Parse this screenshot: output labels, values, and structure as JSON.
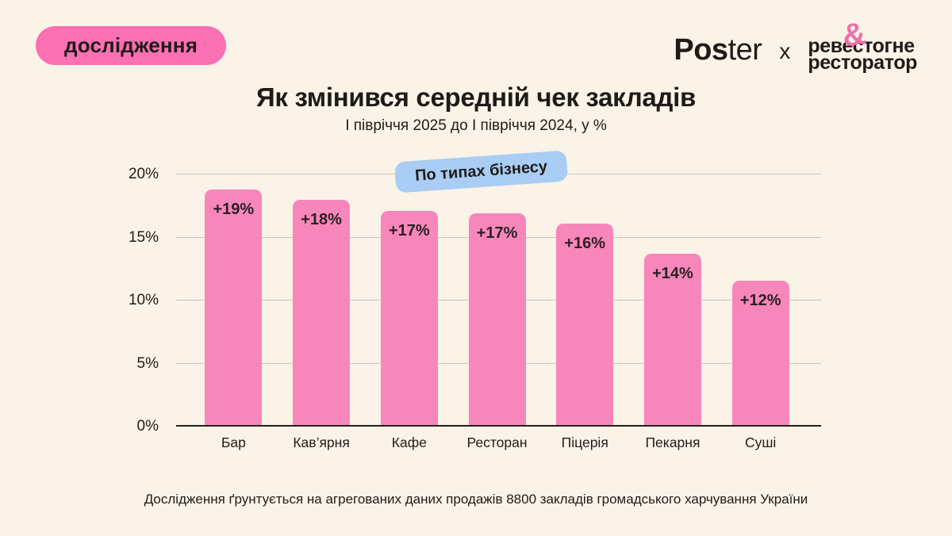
{
  "colors": {
    "background": "#FBF3E8",
    "badge_pink": "#FA70B2",
    "bar_pink": "#F787BA",
    "tag_blue": "#A9CDF4",
    "logo_pink": "#F06EAC",
    "text_dark": "#1E1B18",
    "gridline_gray": "#CBC5BC",
    "axis_black": "#23201C"
  },
  "header": {
    "badge_label": "дослідження",
    "poster_logo": {
      "bold_part": "Pos",
      "light_part": "ter"
    },
    "collab_separator": "x",
    "partner_logo": {
      "ampersand": "&",
      "line1": "ревестогне",
      "line2": "ресторатор"
    }
  },
  "title": "Як змінився середній чек закладів",
  "subtitle": "І півріччя 2025 до І півріччя 2024, у %",
  "chart_data": {
    "type": "bar",
    "tag_label": "По типах бізнесу",
    "categories": [
      "Бар",
      "Кав’ярня",
      "Кафе",
      "Ресторан",
      "Піцерія",
      "Пекарня",
      "Суші"
    ],
    "values": [
      19,
      18,
      17,
      17,
      16,
      14,
      12
    ],
    "value_labels": [
      "+19%",
      "+18%",
      "+17%",
      "+17%",
      "+16%",
      "+14%",
      "+12%"
    ],
    "bar_heights_pct": [
      18.8,
      18.0,
      17.1,
      16.9,
      16.1,
      13.7,
      11.6
    ],
    "y_ticks": [
      {
        "label": "0%",
        "value": 0
      },
      {
        "label": "5%",
        "value": 5
      },
      {
        "label": "10%",
        "value": 10
      },
      {
        "label": "15%",
        "value": 15
      },
      {
        "label": "20%",
        "value": 20
      }
    ],
    "ylim": [
      0,
      20
    ],
    "grid": true,
    "legend": false,
    "xlabel": "",
    "ylabel": ""
  },
  "footer": "Дослідження ґрунтується на агрегованих даних продажів 8800 закладів громадського харчування України"
}
